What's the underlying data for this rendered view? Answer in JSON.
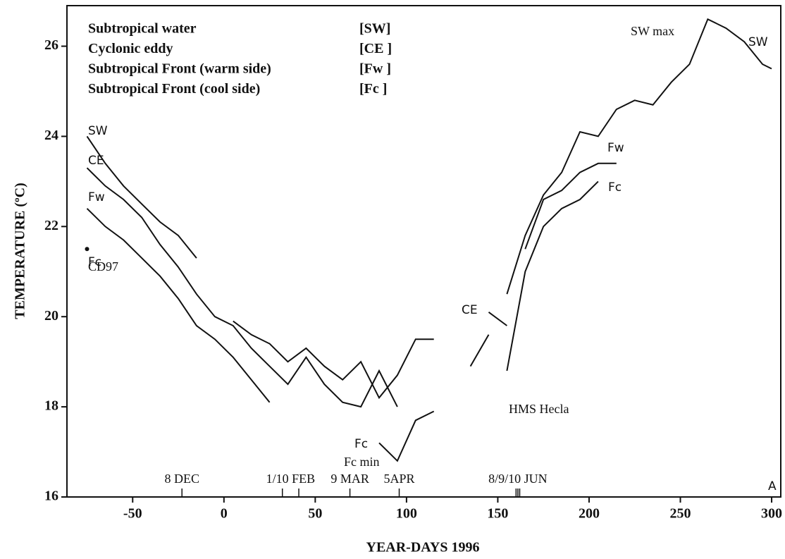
{
  "chart_data": {
    "type": "line",
    "x_label": "YEAR-DAYS 1996",
    "y_label": "TEMPERATURE (ºC)",
    "xlim": [
      -86,
      305
    ],
    "ylim": [
      16,
      26.9
    ],
    "xticks": [
      -50,
      0,
      50,
      100,
      150,
      200,
      250,
      300
    ],
    "yticks": [
      16,
      18,
      20,
      22,
      24,
      26
    ],
    "legend": [
      {
        "text": "Subtropical water",
        "code": "[SW]"
      },
      {
        "text": "Cyclonic eddy",
        "code": "[CE ]"
      },
      {
        "text": "Subtropical Front (warm side)",
        "code": "[Fw ]"
      },
      {
        "text": "Subtropical Front (cool side)",
        "code": "[Fc  ]"
      }
    ],
    "x": [
      -75,
      -65,
      -55,
      -45,
      -35,
      -25,
      -15,
      -5,
      5,
      15,
      25,
      35,
      45,
      55,
      65,
      75,
      85,
      95,
      105,
      115,
      125,
      135,
      145,
      155,
      165,
      175,
      185,
      195,
      205,
      215,
      225,
      235,
      245,
      255,
      265,
      275,
      285,
      295,
      300
    ],
    "series": [
      {
        "name": "SW",
        "color": "#111111",
        "values": [
          24.0,
          23.4,
          22.9,
          22.5,
          22.1,
          21.8,
          21.3,
          null,
          19.9,
          19.6,
          19.4,
          19.0,
          19.3,
          18.9,
          18.6,
          19.0,
          18.2,
          18.7,
          19.5,
          19.5,
          null,
          null,
          null,
          20.5,
          21.8,
          22.7,
          23.2,
          24.1,
          24.0,
          24.6,
          24.8,
          24.7,
          25.2,
          25.6,
          26.6,
          26.4,
          26.1,
          25.6,
          25.5
        ]
      },
      {
        "name": "CE",
        "color": "#111111",
        "values": [
          23.3,
          22.9,
          22.6,
          22.2,
          21.6,
          21.1,
          20.5,
          20.0,
          19.8,
          19.3,
          18.9,
          18.5,
          19.1,
          18.5,
          18.1,
          18.0,
          18.8,
          18.0,
          null,
          null,
          null,
          null,
          20.1,
          19.8,
          null,
          null,
          null,
          null,
          null,
          null,
          null,
          null,
          null,
          null,
          null,
          null,
          null,
          null,
          null
        ]
      },
      {
        "name": "Fw",
        "color": "#111111",
        "values": [
          22.4,
          22.0,
          21.7,
          21.3,
          20.9,
          20.4,
          19.8,
          19.5,
          19.1,
          18.6,
          18.1,
          null,
          null,
          null,
          null,
          null,
          null,
          null,
          null,
          null,
          null,
          18.9,
          19.6,
          null,
          21.5,
          22.6,
          22.8,
          23.2,
          23.4,
          23.4,
          null,
          null,
          null,
          null,
          null,
          null,
          null,
          null,
          null
        ]
      },
      {
        "name": "Fc",
        "color": "#111111",
        "values": [
          21.5,
          null,
          null,
          null,
          null,
          null,
          null,
          null,
          null,
          null,
          null,
          null,
          null,
          null,
          null,
          null,
          17.2,
          16.8,
          17.7,
          17.9,
          null,
          null,
          null,
          18.8,
          21.0,
          22.0,
          22.4,
          22.6,
          23.0,
          null,
          null,
          null,
          null,
          null,
          null,
          null,
          null,
          null,
          null
        ]
      }
    ],
    "events": [
      {
        "label": "8 DEC",
        "days": [
          -23
        ]
      },
      {
        "label": "1/10 FEB",
        "days": [
          32,
          41
        ]
      },
      {
        "label": "9 MAR",
        "days": [
          69
        ]
      },
      {
        "label": "5APR",
        "days": [
          96
        ]
      },
      {
        "label": "8/9/10 JUN",
        "days": [
          160,
          161,
          162
        ]
      }
    ],
    "annotations": [
      "SW max",
      "SW",
      "Fc min",
      "HMS Hecla",
      "CD97",
      "CE",
      "Fw",
      "Fc",
      "Fc",
      "A"
    ]
  }
}
